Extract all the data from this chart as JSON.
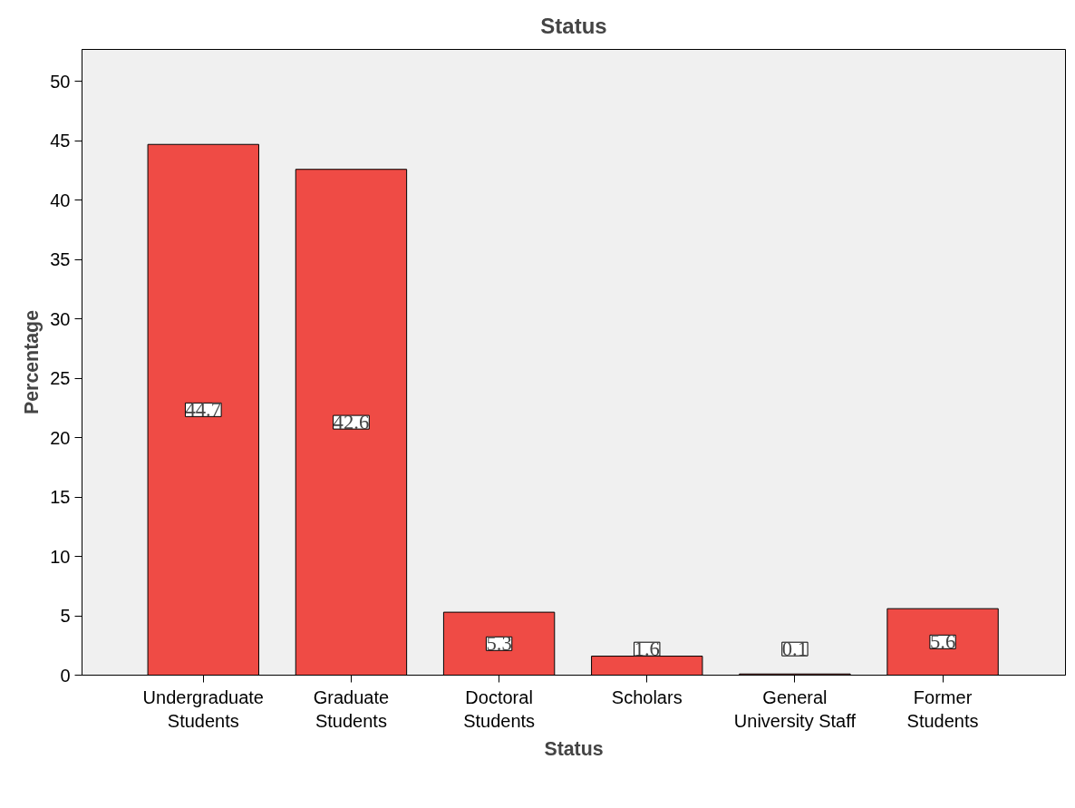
{
  "chart_data": {
    "type": "bar",
    "title": "Status",
    "xlabel": "Status",
    "ylabel": "Percentage",
    "categories": [
      "Undergraduate Students",
      "Graduate Students",
      "Doctoral Students",
      "Scholars",
      "General University Staff",
      "Former Students"
    ],
    "values": [
      44.7,
      42.6,
      5.3,
      1.6,
      0.1,
      5.6
    ],
    "color": "#ef4b45",
    "ylim": [
      0,
      52.7
    ],
    "yticks": [
      0,
      5,
      10,
      15,
      20,
      25,
      30,
      35,
      40,
      45,
      50
    ],
    "grid": false,
    "data_labels": true
  }
}
